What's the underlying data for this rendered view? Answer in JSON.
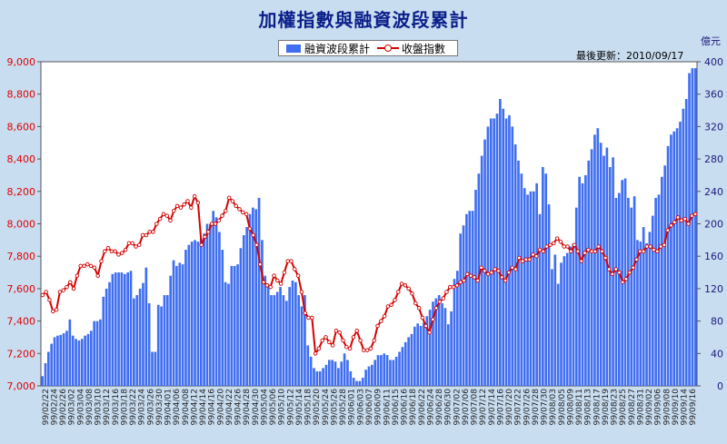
{
  "title": "加權指數與融資波段累計",
  "updated": "最後更新：2010/09/17",
  "unit": "億元",
  "legend": {
    "bar": "融資波段累計",
    "line": "收盤指數"
  },
  "colors": {
    "bar": "#3f6ef0",
    "line": "#d40000",
    "left_axis": "#e00000",
    "right_axis": "#1a1a7a",
    "plot_bg": "#ffffff",
    "page_bg": "#c9ddf0"
  },
  "chart_data": {
    "type": "bar+line",
    "left_axis": {
      "min": 7000,
      "max": 9000,
      "ticks": [
        "7,000",
        "7,200",
        "7,400",
        "7,600",
        "7,800",
        "8,000",
        "8,200",
        "8,400",
        "8,600",
        "8,800",
        "9,000"
      ]
    },
    "right_axis": {
      "min": 0,
      "max": 400,
      "ticks": [
        "0",
        "40",
        "80",
        "120",
        "160",
        "200",
        "240",
        "280",
        "320",
        "360",
        "400"
      ]
    },
    "x_tick_labels": [
      "99/02/22",
      "99/02/24",
      "99/02/26",
      "99/03/02",
      "99/03/04",
      "99/03/08",
      "99/03/10",
      "99/03/12",
      "99/03/16",
      "99/03/18",
      "99/03/22",
      "99/03/24",
      "99/03/26",
      "99/03/30",
      "99/04/01",
      "99/04/06",
      "99/04/08",
      "99/04/12",
      "99/04/14",
      "99/04/16",
      "99/04/20",
      "99/04/22",
      "99/04/26",
      "99/04/28",
      "99/04/30",
      "99/05/04",
      "99/05/06",
      "99/05/10",
      "99/05/12",
      "99/05/14",
      "99/05/18",
      "99/05/20",
      "99/05/24",
      "99/05/26",
      "99/05/28",
      "99/06/01",
      "99/06/03",
      "99/06/07",
      "99/06/09",
      "99/06/11",
      "99/06/15",
      "99/06/16",
      "99/06/18",
      "99/06/22",
      "99/06/24",
      "99/06/28",
      "99/06/30",
      "99/07/02",
      "99/07/06",
      "99/07/08",
      "99/07/12",
      "99/07/14",
      "99/07/16",
      "99/07/20",
      "99/07/22",
      "99/07/26",
      "99/07/28",
      "99/07/30",
      "99/08/03",
      "99/08/05",
      "99/08/09",
      "99/08/11",
      "99/08/13",
      "99/08/17",
      "99/08/19",
      "99/08/23",
      "99/08/25",
      "99/08/27",
      "99/08/31",
      "99/09/02",
      "99/09/06",
      "99/09/08",
      "99/09/10",
      "99/09/14",
      "99/09/16"
    ],
    "financing": [
      12,
      28,
      42,
      52,
      60,
      62,
      63,
      65,
      68,
      82,
      62,
      58,
      56,
      58,
      62,
      64,
      68,
      80,
      80,
      82,
      110,
      120,
      128,
      138,
      140,
      140,
      140,
      138,
      140,
      142,
      108,
      112,
      120,
      127,
      146,
      102,
      42,
      42,
      100,
      98,
      112,
      112,
      136,
      155,
      148,
      152,
      150,
      168,
      174,
      178,
      180,
      178,
      182,
      188,
      200,
      200,
      216,
      208,
      190,
      168,
      128,
      126,
      148,
      148,
      150,
      170,
      186,
      196,
      212,
      220,
      218,
      232,
      180,
      136,
      126,
      112,
      112,
      116,
      122,
      112,
      105,
      122,
      130,
      128,
      112,
      98,
      112,
      50,
      36,
      22,
      18,
      18,
      22,
      26,
      32,
      32,
      30,
      22,
      30,
      40,
      32,
      18,
      10,
      6,
      6,
      10,
      20,
      24,
      26,
      32,
      38,
      38,
      40,
      38,
      32,
      32,
      36,
      42,
      48,
      54,
      60,
      64,
      73,
      77,
      74,
      78,
      86,
      94,
      104,
      108,
      112,
      102,
      96,
      76,
      92,
      132,
      142,
      188,
      198,
      212,
      216,
      216,
      242,
      262,
      284,
      304,
      320,
      330,
      330,
      336,
      354,
      342,
      330,
      334,
      320,
      298,
      278,
      262,
      244,
      236,
      240,
      240,
      250,
      212,
      270,
      262,
      224,
      144,
      162,
      126,
      152,
      160,
      164,
      172,
      176,
      220,
      258,
      250,
      260,
      278,
      292,
      310,
      318,
      300,
      284,
      294,
      270,
      282,
      232,
      238,
      254,
      256,
      232,
      220,
      234,
      180,
      178,
      196,
      176,
      190,
      210,
      232,
      236,
      258,
      272,
      296,
      310,
      314,
      318,
      326,
      342,
      354,
      386,
      392,
      392
    ],
    "index": [
      7560,
      7580,
      7530,
      7460,
      7470,
      7580,
      7590,
      7610,
      7640,
      7600,
      7680,
      7740,
      7740,
      7750,
      7740,
      7730,
      7680,
      7770,
      7830,
      7850,
      7830,
      7830,
      7810,
      7820,
      7840,
      7880,
      7880,
      7860,
      7870,
      7930,
      7930,
      7950,
      7950,
      8000,
      8030,
      8060,
      8050,
      8020,
      8080,
      8110,
      8100,
      8120,
      8140,
      8100,
      8170,
      8130,
      7870,
      7920,
      7950,
      8000,
      8000,
      8020,
      8050,
      8080,
      8160,
      8140,
      8110,
      8090,
      8070,
      8060,
      7970,
      7930,
      7870,
      7750,
      7640,
      7620,
      7610,
      7680,
      7650,
      7630,
      7700,
      7770,
      7770,
      7720,
      7680,
      7580,
      7450,
      7420,
      7420,
      7200,
      7230,
      7280,
      7300,
      7270,
      7250,
      7340,
      7330,
      7280,
      7240,
      7230,
      7300,
      7340,
      7280,
      7220,
      7220,
      7230,
      7280,
      7370,
      7400,
      7430,
      7490,
      7500,
      7530,
      7580,
      7630,
      7620,
      7600,
      7570,
      7510,
      7480,
      7420,
      7370,
      7330,
      7410,
      7480,
      7520,
      7540,
      7580,
      7610,
      7610,
      7620,
      7640,
      7650,
      7690,
      7680,
      7670,
      7650,
      7730,
      7710,
      7690,
      7700,
      7720,
      7710,
      7670,
      7650,
      7700,
      7730,
      7720,
      7790,
      7770,
      7780,
      7780,
      7810,
      7800,
      7840,
      7830,
      7860,
      7870,
      7880,
      7910,
      7890,
      7860,
      7860,
      7830,
      7870,
      7830,
      7770,
      7820,
      7840,
      7830,
      7830,
      7860,
      7830,
      7790,
      7720,
      7690,
      7720,
      7700,
      7640,
      7660,
      7700,
      7730,
      7780,
      7830,
      7830,
      7860,
      7860,
      7840,
      7830,
      7860,
      7870,
      7960,
      7990,
      8010,
      8040,
      8020,
      8030,
      8000,
      8050,
      8060
    ]
  }
}
